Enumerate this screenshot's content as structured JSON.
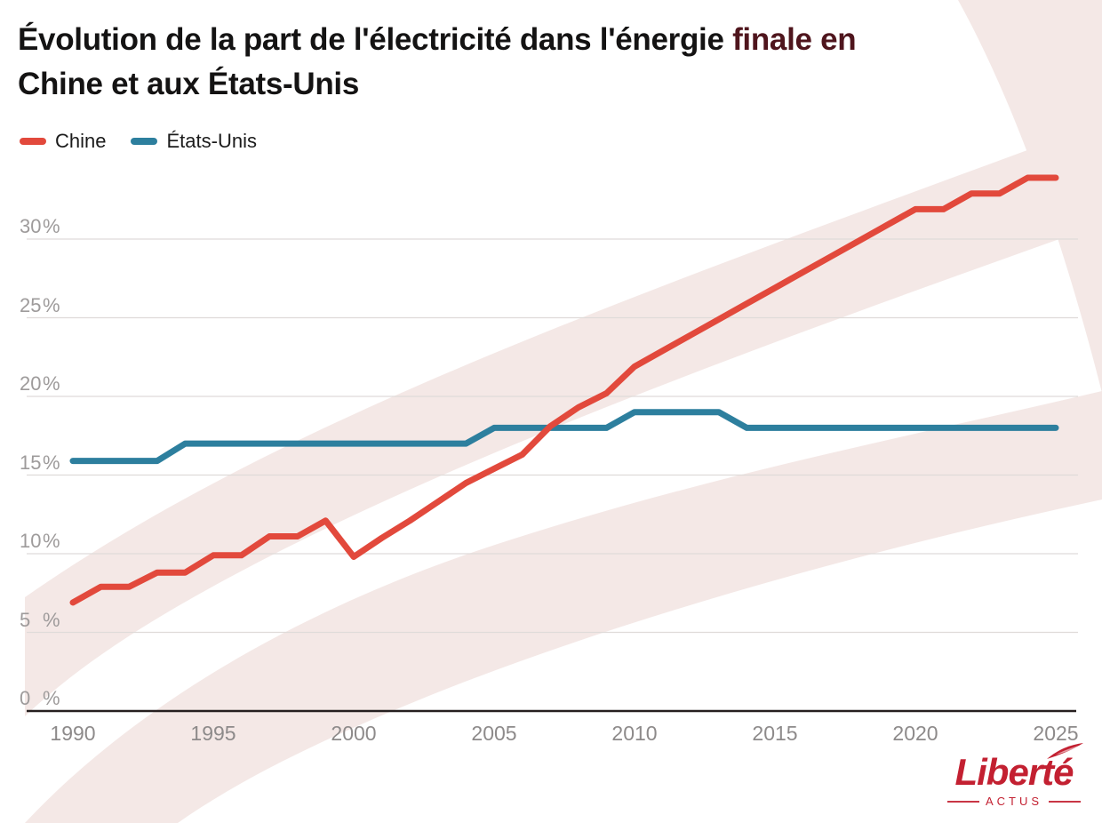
{
  "title": {
    "text_before_highlight": "Évolution de la part de l'électricité dans l'énergie",
    "highlight": "finale en",
    "highlight_color": "#4f151d",
    "line2": "Chine et aux États-Unis"
  },
  "legend": [
    {
      "label": "Chine",
      "color": "#e2493c"
    },
    {
      "label": "États-Unis",
      "color": "#2d7f9e"
    }
  ],
  "logo": {
    "name": "Liberté",
    "tagline": "ACTUS",
    "color": "#c32031"
  },
  "colors": {
    "grid": "#dfdbd9",
    "axis_line": "#261f1f",
    "y_tick_label": "#9e9b9b",
    "x_tick_label": "#8d8a8a",
    "watermark": "#f4e8e6"
  },
  "chart_data": {
    "type": "line",
    "title": "Évolution de la part de l'électricité dans l'énergie finale en Chine et aux États-Unis",
    "xlabel": "",
    "ylabel": "",
    "grid": true,
    "legend_position": "top-left",
    "xlim": [
      1990,
      2025
    ],
    "ylim": [
      0,
      35
    ],
    "xticks": [
      1990,
      1995,
      2000,
      2005,
      2010,
      2015,
      2020,
      2025
    ],
    "yticks": [
      0,
      5,
      10,
      15,
      20,
      25,
      30
    ],
    "ytick_suffix": "%",
    "x": [
      1990,
      1991,
      1992,
      1993,
      1994,
      1995,
      1996,
      1997,
      1998,
      1999,
      2000,
      2001,
      2002,
      2003,
      2004,
      2005,
      2006,
      2007,
      2008,
      2009,
      2010,
      2011,
      2012,
      2013,
      2014,
      2015,
      2016,
      2017,
      2018,
      2019,
      2020,
      2021,
      2022,
      2023,
      2024,
      2025
    ],
    "series": [
      {
        "name": "Chine",
        "color": "#e2493c",
        "values": [
          6.9,
          7.9,
          7.9,
          8.8,
          8.8,
          9.9,
          9.9,
          11.1,
          11.1,
          12.1,
          9.8,
          11.0,
          12.1,
          13.3,
          14.5,
          15.4,
          16.3,
          18.1,
          19.3,
          20.2,
          21.9,
          22.9,
          23.9,
          24.9,
          25.9,
          26.9,
          27.9,
          28.9,
          29.9,
          30.9,
          31.9,
          31.9,
          32.9,
          32.9,
          33.9,
          33.9
        ]
      },
      {
        "name": "États-Unis",
        "color": "#2d7f9e",
        "values": [
          15.9,
          15.9,
          15.9,
          15.9,
          17.0,
          17.0,
          17.0,
          17.0,
          17.0,
          17.0,
          17.0,
          17.0,
          17.0,
          17.0,
          17.0,
          18.0,
          18.0,
          18.0,
          18.0,
          18.0,
          19.0,
          19.0,
          19.0,
          19.0,
          18.0,
          18.0,
          18.0,
          18.0,
          18.0,
          18.0,
          18.0,
          18.0,
          18.0,
          18.0,
          18.0,
          18.0
        ]
      }
    ]
  }
}
